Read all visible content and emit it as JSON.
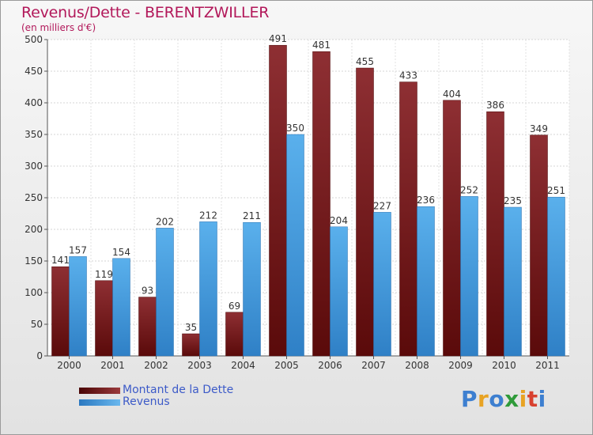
{
  "chart_data": {
    "type": "bar",
    "title": "Revenus/Dette - BERENTZWILLER",
    "subtitle": "(en milliers d'€)",
    "categories": [
      "2000",
      "2001",
      "2002",
      "2003",
      "2004",
      "2005",
      "2006",
      "2007",
      "2008",
      "2009",
      "2010",
      "2011"
    ],
    "series": [
      {
        "name": "Montant de la Dette",
        "values": [
          141,
          119,
          93,
          35,
          69,
          491,
          481,
          455,
          433,
          404,
          386,
          349
        ]
      },
      {
        "name": "Revenus",
        "values": [
          157,
          154,
          202,
          212,
          211,
          350,
          204,
          227,
          236,
          252,
          235,
          251
        ]
      }
    ],
    "ylim": [
      0,
      500
    ],
    "yticks": [
      0,
      50,
      100,
      150,
      200,
      250,
      300,
      350,
      400,
      450,
      500
    ],
    "grid": true,
    "legend_position": "bottom-left"
  },
  "logo": {
    "text": "Proxiti",
    "letters": [
      "P",
      "r",
      "o",
      "x",
      "i",
      "t",
      "i"
    ]
  },
  "colors": {
    "debt": "#7a1f22",
    "revenue": "#4aa3e3",
    "title": "#b2185a",
    "legend_text": "#3c5ac8",
    "logo_letters": [
      "#3d7fd0",
      "#e8a323",
      "#3d7fd0",
      "#2f9b3a",
      "#e8a323",
      "#d8412f",
      "#3d7fd0"
    ]
  }
}
